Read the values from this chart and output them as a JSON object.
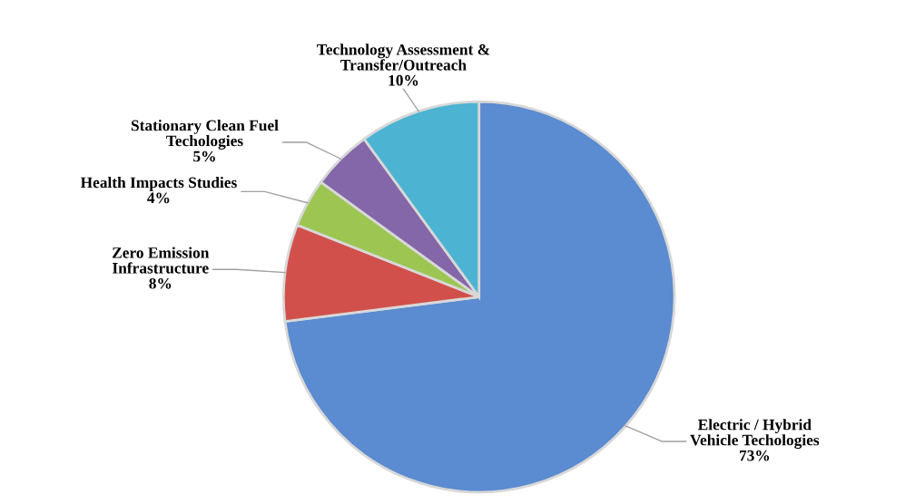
{
  "chart_data": {
    "type": "pie",
    "categories": [
      "Electric / Hybrid Vehicle Techologies",
      "Zero Emission Infrastructure",
      "Health Impacts Studies",
      "Stationary Clean Fuel Techologies",
      "Technology Assessment & Transfer/Outreach"
    ],
    "values": [
      73,
      8,
      4,
      5,
      10
    ],
    "colors": [
      "#5b8bd0",
      "#d2504c",
      "#9cc552",
      "#8467a8",
      "#4cb3d2"
    ],
    "value_labels": [
      "73%",
      "8%",
      "4%",
      "5%",
      "10%"
    ],
    "legend": false
  }
}
